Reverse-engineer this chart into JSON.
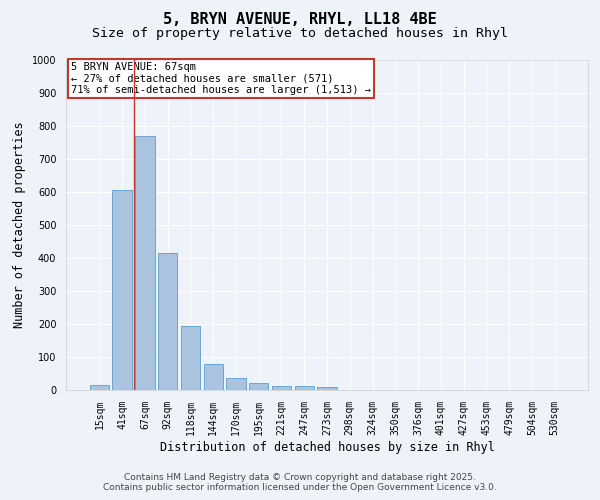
{
  "title1": "5, BRYN AVENUE, RHYL, LL18 4BE",
  "title2": "Size of property relative to detached houses in Rhyl",
  "xlabel": "Distribution of detached houses by size in Rhyl",
  "ylabel": "Number of detached properties",
  "categories": [
    "15sqm",
    "41sqm",
    "67sqm",
    "92sqm",
    "118sqm",
    "144sqm",
    "170sqm",
    "195sqm",
    "221sqm",
    "247sqm",
    "273sqm",
    "298sqm",
    "324sqm",
    "350sqm",
    "376sqm",
    "401sqm",
    "427sqm",
    "453sqm",
    "479sqm",
    "504sqm",
    "530sqm"
  ],
  "values": [
    15,
    605,
    770,
    415,
    193,
    80,
    37,
    20,
    13,
    12,
    9,
    0,
    0,
    0,
    0,
    0,
    0,
    0,
    0,
    0,
    0
  ],
  "bar_color": "#aac4e0",
  "bar_edge_color": "#5a9fd4",
  "background_color": "#eef3fa",
  "grid_color": "#ffffff",
  "property_line_color": "#c0392b",
  "property_line_index": 1.5,
  "annotation_box_color": "#c0392b",
  "annotation_text_line1": "5 BRYN AVENUE: 67sqm",
  "annotation_text_line2": "← 27% of detached houses are smaller (571)",
  "annotation_text_line3": "71% of semi-detached houses are larger (1,513) →",
  "ylim": [
    0,
    1000
  ],
  "yticks": [
    0,
    100,
    200,
    300,
    400,
    500,
    600,
    700,
    800,
    900,
    1000
  ],
  "footer1": "Contains HM Land Registry data © Crown copyright and database right 2025.",
  "footer2": "Contains public sector information licensed under the Open Government Licence v3.0.",
  "title_fontsize": 11,
  "subtitle_fontsize": 9.5,
  "axis_label_fontsize": 8.5,
  "tick_fontsize": 7,
  "annotation_fontsize": 7.5,
  "footer_fontsize": 6.5
}
